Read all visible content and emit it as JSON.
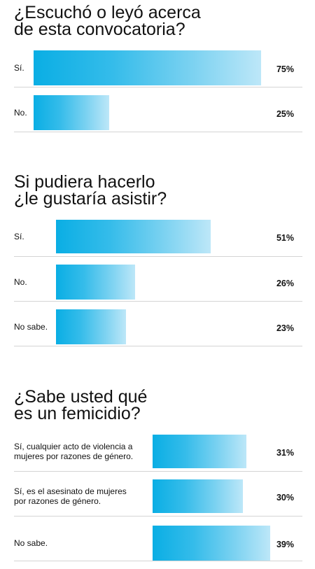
{
  "chart_data": [
    {
      "type": "bar",
      "title": "¿Escuchó o leyó acerca\nde esta convocatoria?",
      "categories": [
        "Sí.",
        "No."
      ],
      "values": [
        75,
        25
      ],
      "value_labels": [
        "75%",
        "25%"
      ]
    },
    {
      "type": "bar",
      "title": "Si pudiera hacerlo\n¿le gustaría asistir?",
      "categories": [
        "Sí.",
        "No.",
        "No sabe."
      ],
      "values": [
        51,
        26,
        23
      ],
      "value_labels": [
        "51%",
        "26%",
        "23%"
      ]
    },
    {
      "type": "bar",
      "title": "¿Sabe usted qué\nes un femicidio?",
      "categories": [
        "Sí, cualquier acto de violencia a\nmujeres por razones de género.",
        "Sí, es el asesinato de mujeres\npor razones de género.",
        "No sabe."
      ],
      "values": [
        31,
        30,
        39
      ],
      "value_labels": [
        "31%",
        "30%",
        "39%"
      ]
    }
  ],
  "colors": {
    "bar_start": "#0aaee4",
    "bar_end": "#bde7f8",
    "divider": "#d4d4d4"
  }
}
